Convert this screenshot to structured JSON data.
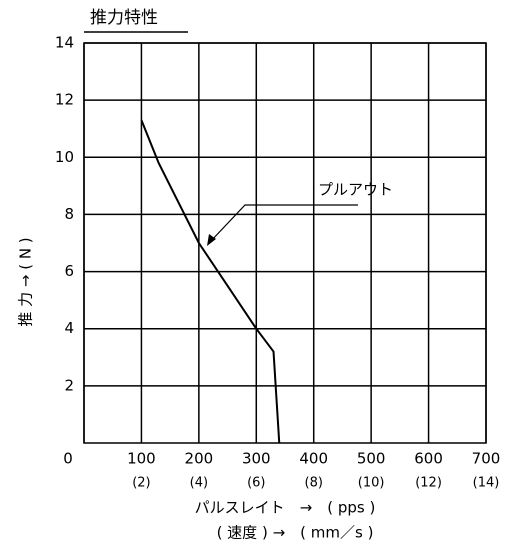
{
  "chart_data": {
    "type": "line",
    "title": "推力特性",
    "y_label": "推 力 → ( N )",
    "x_label": "パルスレイト　→　( pps )",
    "x_label2": "( 速度 ) →　( mm／s )",
    "annotation": "プルアウト",
    "x": [
      100,
      130,
      160,
      200,
      250,
      300,
      330,
      340
    ],
    "values": [
      11.3,
      9.8,
      8.6,
      7.0,
      5.5,
      4.0,
      3.2,
      0
    ],
    "color": "#000000",
    "xlim": [
      0,
      700
    ],
    "xticks": [
      0,
      100,
      200,
      300,
      400,
      500,
      600,
      700
    ],
    "x2ticks": [
      {
        "value": 100,
        "label": "(2)"
      },
      {
        "value": 200,
        "label": "(4)"
      },
      {
        "value": 300,
        "label": "(6)"
      },
      {
        "value": 400,
        "label": "(8)"
      },
      {
        "value": 500,
        "label": "(10)"
      },
      {
        "value": 600,
        "label": "(12)"
      },
      {
        "value": 700,
        "label": "(14)"
      }
    ],
    "ylim": [
      0,
      14
    ],
    "yticks": [
      2,
      4,
      6,
      8,
      10,
      12,
      14
    ],
    "grid": true
  }
}
